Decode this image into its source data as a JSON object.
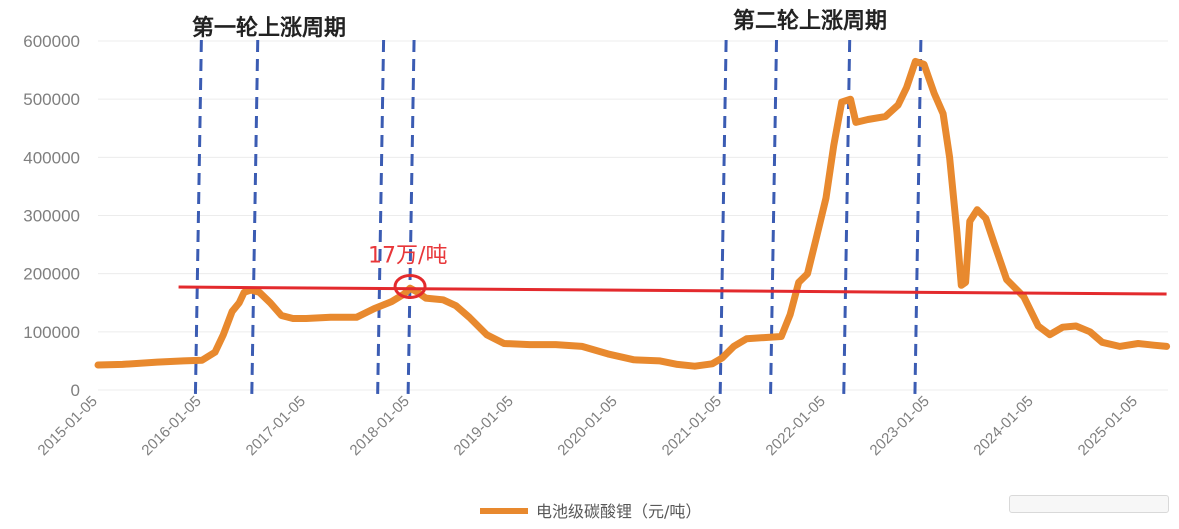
{
  "chart_data": {
    "type": "line",
    "title": "",
    "xlabel": "",
    "ylabel": "",
    "ylim": [
      0,
      600000
    ],
    "yticks": [
      "0",
      "100000",
      "200000",
      "300000",
      "400000",
      "500000",
      "600000"
    ],
    "xtick_labels": [
      "2015-01-05",
      "2016-01-05",
      "2017-01-05",
      "2018-01-05",
      "2019-01-05",
      "2020-01-05",
      "2021-01-05",
      "2022-01-05",
      "2023-01-05",
      "2024-01-05",
      "2025-01-05"
    ],
    "grid": "horizontal",
    "legend_position": "bottom",
    "series": [
      {
        "name": "电池级碳酸锂（元/吨）",
        "color": "#e8892e",
        "points": [
          [
            "2015-01-05",
            43000
          ],
          [
            "2015-04-01",
            44000
          ],
          [
            "2015-08-01",
            48000
          ],
          [
            "2015-11-01",
            50000
          ],
          [
            "2016-01-05",
            51000
          ],
          [
            "2016-02-20",
            65000
          ],
          [
            "2016-03-20",
            95000
          ],
          [
            "2016-04-20",
            135000
          ],
          [
            "2016-05-15",
            150000
          ],
          [
            "2016-06-01",
            168000
          ],
          [
            "2016-06-25",
            172000
          ],
          [
            "2016-07-25",
            168000
          ],
          [
            "2016-09-01",
            150000
          ],
          [
            "2016-10-10",
            128000
          ],
          [
            "2016-11-20",
            123000
          ],
          [
            "2017-01-05",
            123000
          ],
          [
            "2017-04-01",
            125000
          ],
          [
            "2017-07-01",
            125000
          ],
          [
            "2017-09-01",
            140000
          ],
          [
            "2017-11-01",
            152000
          ],
          [
            "2017-12-15",
            165000
          ],
          [
            "2018-01-05",
            175000
          ],
          [
            "2018-02-01",
            168000
          ],
          [
            "2018-03-01",
            158000
          ],
          [
            "2018-05-01",
            155000
          ],
          [
            "2018-06-15",
            145000
          ],
          [
            "2018-08-01",
            125000
          ],
          [
            "2018-10-01",
            95000
          ],
          [
            "2018-12-01",
            80000
          ],
          [
            "2019-03-01",
            78000
          ],
          [
            "2019-06-01",
            78000
          ],
          [
            "2019-09-01",
            75000
          ],
          [
            "2019-12-01",
            62000
          ],
          [
            "2020-03-01",
            52000
          ],
          [
            "2020-06-01",
            50000
          ],
          [
            "2020-08-01",
            44000
          ],
          [
            "2020-10-01",
            41000
          ],
          [
            "2020-12-01",
            45000
          ],
          [
            "2021-01-05",
            55000
          ],
          [
            "2021-02-15",
            75000
          ],
          [
            "2021-04-01",
            88000
          ],
          [
            "2021-06-01",
            90000
          ],
          [
            "2021-08-01",
            92000
          ],
          [
            "2021-09-01",
            130000
          ],
          [
            "2021-10-01",
            185000
          ],
          [
            "2021-11-01",
            200000
          ],
          [
            "2021-12-01",
            260000
          ],
          [
            "2022-01-05",
            330000
          ],
          [
            "2022-02-01",
            420000
          ],
          [
            "2022-03-01",
            495000
          ],
          [
            "2022-04-01",
            500000
          ],
          [
            "2022-04-20",
            460000
          ],
          [
            "2022-06-01",
            465000
          ],
          [
            "2022-08-01",
            470000
          ],
          [
            "2022-09-15",
            490000
          ],
          [
            "2022-10-15",
            520000
          ],
          [
            "2022-11-15",
            565000
          ],
          [
            "2022-12-15",
            560000
          ],
          [
            "2023-01-20",
            510000
          ],
          [
            "2023-02-20",
            475000
          ],
          [
            "2023-03-15",
            400000
          ],
          [
            "2023-04-10",
            270000
          ],
          [
            "2023-04-25",
            180000
          ],
          [
            "2023-05-10",
            185000
          ],
          [
            "2023-05-25",
            290000
          ],
          [
            "2023-06-20",
            310000
          ],
          [
            "2023-07-20",
            295000
          ],
          [
            "2023-08-20",
            250000
          ],
          [
            "2023-10-01",
            190000
          ],
          [
            "2023-12-01",
            160000
          ],
          [
            "2024-01-20",
            110000
          ],
          [
            "2024-03-01",
            95000
          ],
          [
            "2024-04-15",
            108000
          ],
          [
            "2024-06-01",
            110000
          ],
          [
            "2024-07-20",
            100000
          ],
          [
            "2024-09-01",
            82000
          ],
          [
            "2024-11-01",
            75000
          ],
          [
            "2025-01-05",
            80000
          ],
          [
            "2025-03-01",
            77000
          ],
          [
            "2025-04-15",
            75000
          ]
        ]
      }
    ],
    "reference_line": {
      "color": "#e32a2d",
      "start": [
        "2015-10-15",
        177000
      ],
      "end": [
        "2025-04-15",
        165000
      ]
    },
    "vertical_markers": [
      "2015-12-20",
      "2016-07-05",
      "2017-09-20",
      "2018-01-05",
      "2021-01-05",
      "2021-07-01",
      "2022-03-15",
      "2022-11-20"
    ],
    "marker_color": "#3b5cb3",
    "annotations": {
      "phase1": "第一轮上涨周期",
      "phase2": "第二轮上涨周期",
      "price_note": "17万/吨",
      "price_point": [
        "2018-01-05",
        178000
      ]
    }
  }
}
